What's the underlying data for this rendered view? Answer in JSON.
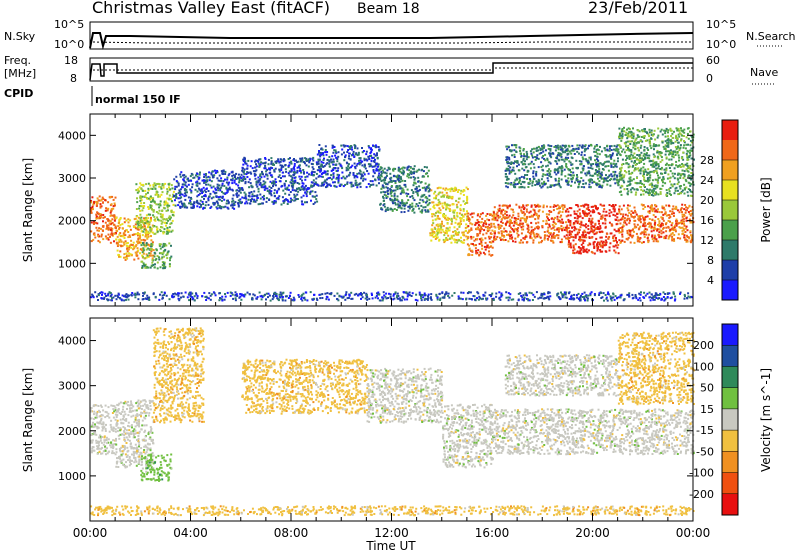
{
  "header": {
    "title": "Christmas Valley East (fitACF)",
    "beam": "Beam 18",
    "date": "23/Feb/2011"
  },
  "panels": {
    "nsky": {
      "left_label": "N.Sky",
      "right_label": "N.Search",
      "left_ticks": [
        "10^5",
        "10^0"
      ],
      "right_ticks": [
        "10^5",
        "10^0"
      ]
    },
    "freq": {
      "left_label_1": "Freq.",
      "left_label_2": "[MHz]",
      "right_label": "Nave",
      "left_ticks": [
        "18",
        "8"
      ],
      "right_ticks": [
        "60",
        "0"
      ]
    },
    "cpid": {
      "label": "CPID",
      "mode": "normal 150 IF"
    }
  },
  "chart_data": [
    {
      "type": "heatmap",
      "title": "Power",
      "ylabel": "Slant Range [km]",
      "xlabel": "",
      "ylim": [
        0,
        4500
      ],
      "xlim": [
        0,
        24
      ],
      "yticks": [
        "1000",
        "2000",
        "3000",
        "4000"
      ],
      "colorbar": {
        "label": "Power [dB]",
        "ticks": [
          "4",
          "8",
          "12",
          "16",
          "20",
          "24",
          "28"
        ],
        "colors": [
          "#1a1aff",
          "#1f3fa8",
          "#2e7a6a",
          "#4aa04a",
          "#9ac83a",
          "#e8e020",
          "#f0a020",
          "#f06818",
          "#e81e10"
        ]
      },
      "bands": [
        {
          "t0": 0.0,
          "t1": 1.0,
          "r0": 1500,
          "r1": 2600,
          "level": 7
        },
        {
          "t0": 1.0,
          "t1": 2.5,
          "r0": 1100,
          "r1": 2100,
          "level": 6
        },
        {
          "t0": 1.8,
          "t1": 3.3,
          "r0": 1700,
          "r1": 2900,
          "level": 4
        },
        {
          "t0": 2.0,
          "t1": 3.2,
          "r0": 900,
          "r1": 1500,
          "level": 3
        },
        {
          "t0": 3.3,
          "t1": 6.0,
          "r0": 2300,
          "r1": 3200,
          "level": 1
        },
        {
          "t0": 6.0,
          "t1": 9.0,
          "r0": 2400,
          "r1": 3500,
          "level": 1
        },
        {
          "t0": 9.0,
          "t1": 11.5,
          "r0": 2800,
          "r1": 3800,
          "level": 1
        },
        {
          "t0": 11.5,
          "t1": 13.5,
          "r0": 2200,
          "r1": 3300,
          "level": 2
        },
        {
          "t0": 13.5,
          "t1": 15.0,
          "r0": 1500,
          "r1": 2800,
          "level": 5
        },
        {
          "t0": 15.0,
          "t1": 16.0,
          "r0": 1200,
          "r1": 2200,
          "level": 7
        },
        {
          "t0": 16.0,
          "t1": 19.0,
          "r0": 1500,
          "r1": 2400,
          "level": 7
        },
        {
          "t0": 19.0,
          "t1": 21.0,
          "r0": 1250,
          "r1": 2400,
          "level": 8
        },
        {
          "t0": 21.0,
          "t1": 24.0,
          "r0": 1500,
          "r1": 2400,
          "level": 7
        },
        {
          "t0": 16.5,
          "t1": 21.0,
          "r0": 2800,
          "r1": 3800,
          "level": 2
        },
        {
          "t0": 21.0,
          "t1": 24.0,
          "r0": 2600,
          "r1": 4200,
          "level": 3
        },
        {
          "t0": 0.0,
          "t1": 24.0,
          "r0": 150,
          "r1": 350,
          "level": 1
        }
      ]
    },
    {
      "type": "heatmap",
      "title": "Velocity",
      "ylabel": "Slant Range [km]",
      "xlabel": "Time UT",
      "ylim": [
        0,
        4500
      ],
      "xlim": [
        0,
        24
      ],
      "xticks": [
        "00:00",
        "04:00",
        "08:00",
        "12:00",
        "16:00",
        "20:00",
        "00:00"
      ],
      "yticks": [
        "1000",
        "2000",
        "3000",
        "4000"
      ],
      "colorbar": {
        "label": "Velocity [m s^-1]",
        "ticks": [
          "200",
          "100",
          "50",
          "15",
          "-15",
          "-50",
          "-100",
          "-200"
        ],
        "colors": [
          "#1a1aff",
          "#1f4fa0",
          "#2f8a5a",
          "#70c040",
          "#c8c8c0",
          "#f0c040",
          "#f09020",
          "#f05010",
          "#e81010"
        ]
      },
      "bands": [
        {
          "t0": 0.0,
          "t1": 1.0,
          "r0": 1500,
          "r1": 2600,
          "level": 4
        },
        {
          "t0": 1.0,
          "t1": 2.5,
          "r0": 1200,
          "r1": 2700,
          "level": 4
        },
        {
          "t0": 2.0,
          "t1": 3.2,
          "r0": 900,
          "r1": 1500,
          "level": 3
        },
        {
          "t0": 2.5,
          "t1": 4.5,
          "r0": 2200,
          "r1": 4300,
          "level": 5
        },
        {
          "t0": 6.0,
          "t1": 11.0,
          "r0": 2400,
          "r1": 3600,
          "level": 5
        },
        {
          "t0": 11.0,
          "t1": 14.0,
          "r0": 2200,
          "r1": 3400,
          "level": 4
        },
        {
          "t0": 14.0,
          "t1": 16.0,
          "r0": 1200,
          "r1": 2600,
          "level": 4
        },
        {
          "t0": 16.0,
          "t1": 24.0,
          "r0": 1500,
          "r1": 2500,
          "level": 4
        },
        {
          "t0": 16.5,
          "t1": 21.0,
          "r0": 2800,
          "r1": 3700,
          "level": 4
        },
        {
          "t0": 21.0,
          "t1": 24.0,
          "r0": 2600,
          "r1": 4200,
          "level": 5
        },
        {
          "t0": 0.0,
          "t1": 24.0,
          "r0": 150,
          "r1": 350,
          "level": 5
        }
      ]
    }
  ]
}
